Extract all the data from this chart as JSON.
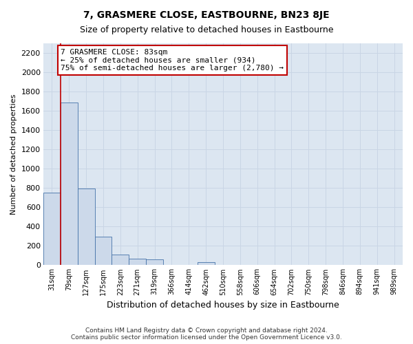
{
  "title": "7, GRASMERE CLOSE, EASTBOURNE, BN23 8JE",
  "subtitle": "Size of property relative to detached houses in Eastbourne",
  "xlabel": "Distribution of detached houses by size in Eastbourne",
  "ylabel": "Number of detached properties",
  "footer_line1": "Contains HM Land Registry data © Crown copyright and database right 2024.",
  "footer_line2": "Contains public sector information licensed under the Open Government Licence v3.0.",
  "annotation_line1": "7 GRASMERE CLOSE: 83sqm",
  "annotation_line2": "← 25% of detached houses are smaller (934)",
  "annotation_line3": "75% of semi-detached houses are larger (2,780) →",
  "bar_labels": [
    "31sqm",
    "79sqm",
    "127sqm",
    "175sqm",
    "223sqm",
    "271sqm",
    "319sqm",
    "366sqm",
    "414sqm",
    "462sqm",
    "510sqm",
    "558sqm",
    "606sqm",
    "654sqm",
    "702sqm",
    "750sqm",
    "798sqm",
    "846sqm",
    "894sqm",
    "941sqm",
    "989sqm"
  ],
  "bar_values": [
    750,
    1680,
    790,
    295,
    110,
    65,
    60,
    0,
    0,
    30,
    0,
    0,
    0,
    0,
    0,
    0,
    0,
    0,
    0,
    0,
    0
  ],
  "bar_color": "#ccd9ea",
  "bar_edge_color": "#4472a8",
  "ylim": [
    0,
    2300
  ],
  "yticks": [
    0,
    200,
    400,
    600,
    800,
    1000,
    1200,
    1400,
    1600,
    1800,
    2000,
    2200
  ],
  "plot_bg_color": "#dce6f1",
  "fig_bg_color": "#ffffff",
  "red_line_color": "#c00000",
  "annotation_box_edge_color": "#c00000",
  "grid_color": "#c9d5e5",
  "title_fontsize": 10,
  "subtitle_fontsize": 9,
  "ylabel_fontsize": 8,
  "xlabel_fontsize": 9,
  "tick_fontsize": 8,
  "xtick_fontsize": 7,
  "footer_fontsize": 6.5,
  "annotation_fontsize": 8
}
